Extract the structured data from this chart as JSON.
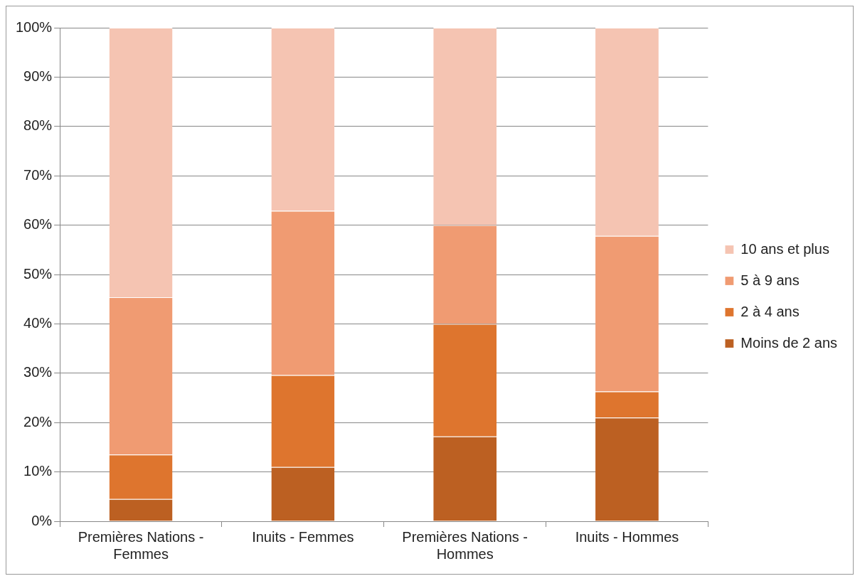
{
  "chart_data": {
    "type": "bar",
    "stacked": true,
    "categories": [
      "Premières Nations - Femmes",
      "Inuits - Femmes",
      "Premières Nations - Hommes",
      "Inuits - Hommes"
    ],
    "series": [
      {
        "name": "Moins de 2 ans",
        "color": "#bc6022",
        "values": [
          4.5,
          11.0,
          17.2,
          21.0
        ]
      },
      {
        "name": "2 à 4 ans",
        "color": "#de752e",
        "values": [
          9.0,
          18.6,
          22.8,
          5.3
        ]
      },
      {
        "name": "5 à 9 ans",
        "color": "#f09b72",
        "values": [
          31.9,
          33.3,
          20.0,
          31.5
        ]
      },
      {
        "name": "10 ans et plus",
        "color": "#f5c4b2",
        "values": [
          54.6,
          37.1,
          40.0,
          42.2
        ]
      }
    ],
    "ylim": [
      0,
      100
    ],
    "yticks": [
      {
        "value": 0,
        "label": "0%"
      },
      {
        "value": 10,
        "label": "10%"
      },
      {
        "value": 20,
        "label": "20%"
      },
      {
        "value": 30,
        "label": "30%"
      },
      {
        "value": 40,
        "label": "40%"
      },
      {
        "value": 50,
        "label": "50%"
      },
      {
        "value": 60,
        "label": "60%"
      },
      {
        "value": 70,
        "label": "70%"
      },
      {
        "value": 80,
        "label": "80%"
      },
      {
        "value": 90,
        "label": "90%"
      },
      {
        "value": 100,
        "label": "100%"
      }
    ],
    "grid": "y",
    "legend": "right"
  }
}
